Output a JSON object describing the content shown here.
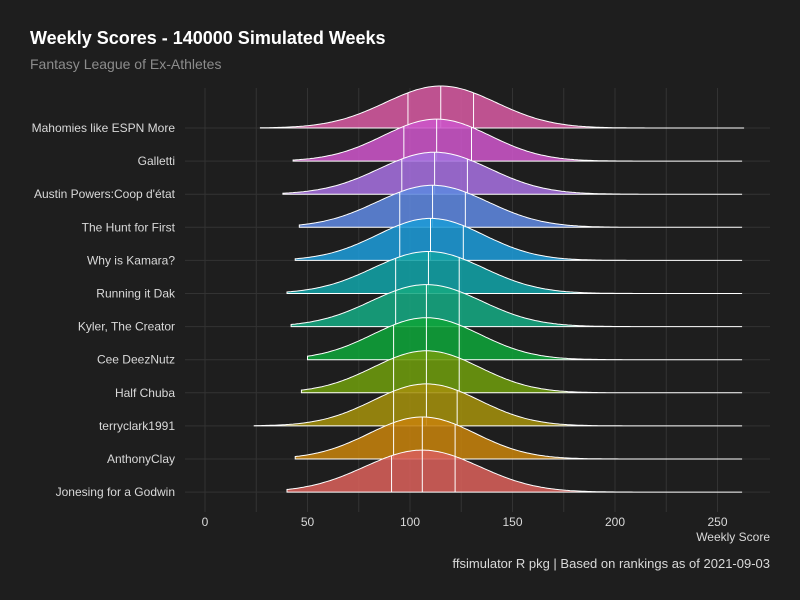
{
  "chart_data": {
    "type": "ridgeline",
    "title": "Weekly Scores - 140000 Simulated Weeks",
    "subtitle": "Fantasy League of Ex-Athletes",
    "xlabel": "Weekly Score",
    "caption": "ffsimulator R pkg | Based on rankings as of 2021-09-03",
    "xlim": [
      0,
      265
    ],
    "x_ticks": [
      0,
      50,
      100,
      150,
      200,
      250
    ],
    "grid": true,
    "quantile_lines": [
      0.25,
      0.5,
      0.75
    ],
    "series": [
      {
        "name": "Mahomies like ESPN More",
        "color": "#d55aa0",
        "min": 27,
        "mean": 115,
        "sd": 27,
        "quartiles": [
          99,
          115,
          131
        ],
        "max": 263
      },
      {
        "name": "Galletti",
        "color": "#cc55c8",
        "min": 43,
        "mean": 113,
        "sd": 26,
        "quartiles": [
          97,
          113,
          130
        ],
        "max": 262
      },
      {
        "name": "Austin Powers:Coop d'état",
        "color": "#a56fde",
        "min": 38,
        "mean": 112,
        "sd": 27,
        "quartiles": [
          96,
          112,
          128
        ],
        "max": 262
      },
      {
        "name": "The Hunt for First",
        "color": "#5f88df",
        "min": 46,
        "mean": 111,
        "sd": 27,
        "quartiles": [
          95,
          111,
          127
        ],
        "max": 262
      },
      {
        "name": "Why is Kamara?",
        "color": "#1e9ad6",
        "min": 44,
        "mean": 110,
        "sd": 26,
        "quartiles": [
          95,
          110,
          126
        ],
        "max": 262
      },
      {
        "name": "Running it Dak",
        "color": "#12a2a6",
        "min": 40,
        "mean": 109,
        "sd": 27,
        "quartiles": [
          93,
          109,
          124
        ],
        "max": 262
      },
      {
        "name": "Kyler, The Creator",
        "color": "#16a882",
        "min": 42,
        "mean": 108,
        "sd": 27,
        "quartiles": [
          93,
          108,
          124
        ],
        "max": 262
      },
      {
        "name": "Cee DeezNutz",
        "color": "#0fa43a",
        "min": 50,
        "mean": 108,
        "sd": 26,
        "quartiles": [
          92,
          108,
          124
        ],
        "max": 262
      },
      {
        "name": "Half Chuba",
        "color": "#6e9c0e",
        "min": 47,
        "mean": 108,
        "sd": 26,
        "quartiles": [
          92,
          108,
          124
        ],
        "max": 262
      },
      {
        "name": "terryclark1991",
        "color": "#a38f0c",
        "min": 24,
        "mean": 108,
        "sd": 26,
        "quartiles": [
          92,
          108,
          123
        ],
        "max": 262
      },
      {
        "name": "AnthonyClay",
        "color": "#c5820c",
        "min": 44,
        "mean": 106,
        "sd": 26,
        "quartiles": [
          92,
          106,
          122
        ],
        "max": 262
      },
      {
        "name": "Jonesing for a Godwin",
        "color": "#d7605a",
        "min": 40,
        "mean": 106,
        "sd": 28,
        "quartiles": [
          91,
          106,
          122
        ],
        "max": 262
      }
    ]
  }
}
